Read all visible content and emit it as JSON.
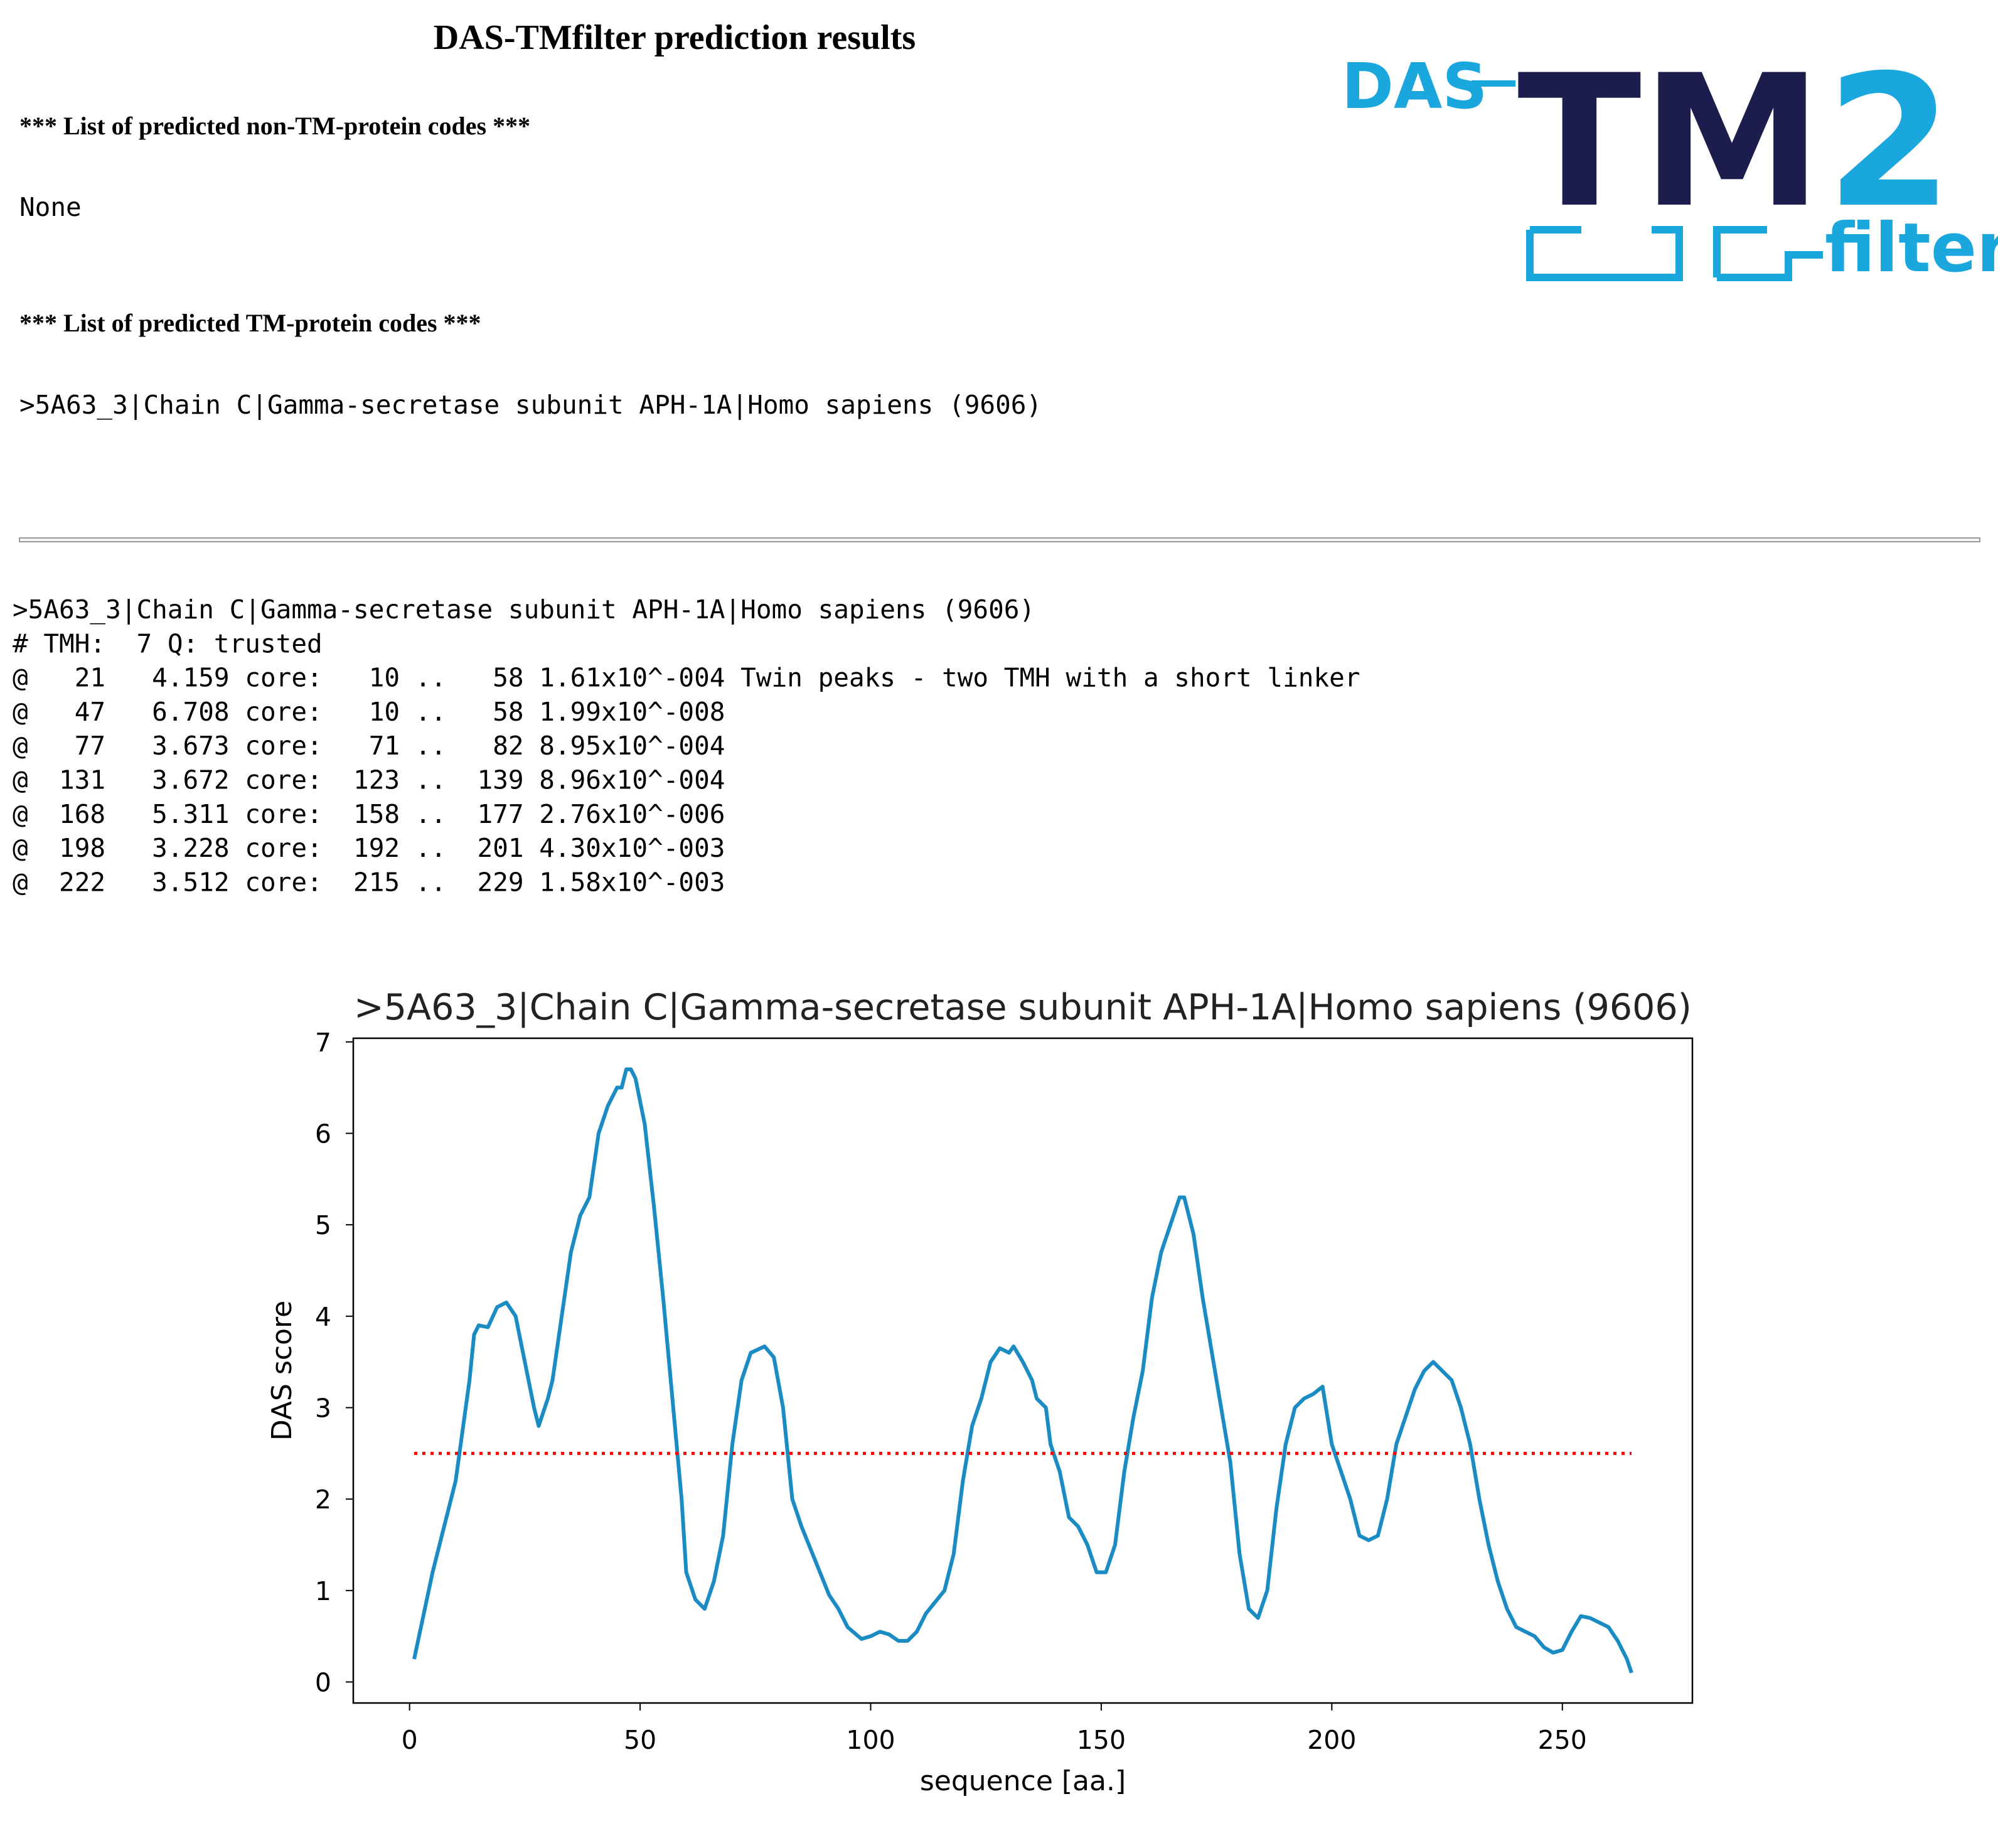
{
  "header": {
    "title": "DAS-TMfilter prediction results"
  },
  "logo": {
    "prefix": "DAS",
    "main": "TM",
    "version": "2",
    "suffix": "filter"
  },
  "non_tm": {
    "heading": "*** List of predicted non-TM-protein codes ***",
    "items": [
      "None"
    ]
  },
  "tm": {
    "heading": "*** List of predicted TM-protein codes ***",
    "items": [
      ">5A63_3|Chain C|Gamma-secretase subunit APH-1A|Homo sapiens (9606)"
    ]
  },
  "output": {
    "lines": [
      ">5A63_3|Chain C|Gamma-secretase subunit APH-1A|Homo sapiens (9606)",
      "# TMH:  7 Q: trusted",
      "@   21   4.159 core:   10 ..   58 1.61x10^-004 Twin peaks - two TMH with a short linker",
      "@   47   6.708 core:   10 ..   58 1.99x10^-008",
      "@   77   3.673 core:   71 ..   82 8.95x10^-004",
      "@  131   3.672 core:  123 ..  139 8.96x10^-004",
      "@  168   5.311 core:  158 ..  177 2.76x10^-006",
      "@  198   3.228 core:  192 ..  201 4.30x10^-003",
      "@  222   3.512 core:  215 ..  229 1.58x10^-003"
    ]
  },
  "chart_data": {
    "type": "line",
    "title": ">5A63_3|Chain C|Gamma-secretase subunit APH-1A|Homo sapiens (9606)",
    "xlabel": "sequence [aa.]",
    "ylabel": "DAS score",
    "x": [
      1,
      5,
      8,
      10,
      13,
      14,
      15,
      17,
      19,
      21,
      23,
      25,
      27,
      28,
      30,
      31,
      33,
      35,
      37,
      39,
      41,
      43,
      45,
      46,
      47,
      48,
      49,
      51,
      53,
      55,
      57,
      59,
      60,
      62,
      64,
      66,
      68,
      70,
      72,
      74,
      77,
      79,
      81,
      83,
      85,
      87,
      89,
      91,
      93,
      95,
      98,
      100,
      102,
      104,
      106,
      108,
      110,
      112,
      116,
      118,
      120,
      122,
      124,
      126,
      128,
      130,
      131,
      133,
      135,
      136,
      138,
      139,
      141,
      143,
      145,
      147,
      149,
      151,
      153,
      155,
      157,
      159,
      161,
      163,
      165,
      167,
      168,
      170,
      172,
      174,
      176,
      178,
      180,
      182,
      184,
      186,
      188,
      190,
      192,
      194,
      196,
      198,
      200,
      202,
      204,
      206,
      208,
      210,
      212,
      214,
      216,
      218,
      220,
      222,
      224,
      226,
      228,
      230,
      232,
      234,
      236,
      238,
      240,
      242,
      244,
      246,
      248,
      250,
      252,
      254,
      256,
      258,
      260,
      262,
      264,
      265
    ],
    "series": [
      {
        "color": "#1b8cc3",
        "values": [
          0.25,
          1.2,
          1.8,
          2.2,
          3.3,
          3.8,
          3.9,
          3.88,
          4.1,
          4.15,
          4.0,
          3.5,
          3.0,
          2.8,
          3.1,
          3.3,
          4.0,
          4.7,
          5.1,
          5.3,
          6.0,
          6.3,
          6.5,
          6.5,
          6.7,
          6.7,
          6.6,
          6.1,
          5.2,
          4.2,
          3.1,
          2.0,
          1.2,
          0.9,
          0.8,
          1.1,
          1.6,
          2.6,
          3.3,
          3.6,
          3.67,
          3.55,
          3.0,
          2.0,
          1.7,
          1.45,
          1.2,
          0.95,
          0.8,
          0.6,
          0.47,
          0.5,
          0.55,
          0.52,
          0.45,
          0.45,
          0.55,
          0.75,
          1.0,
          1.4,
          2.2,
          2.8,
          3.1,
          3.5,
          3.65,
          3.6,
          3.67,
          3.5,
          3.3,
          3.1,
          3.0,
          2.6,
          2.3,
          1.8,
          1.7,
          1.5,
          1.2,
          1.2,
          1.5,
          2.3,
          2.9,
          3.4,
          4.2,
          4.7,
          5.0,
          5.3,
          5.3,
          4.9,
          4.2,
          3.6,
          3.0,
          2.4,
          1.4,
          0.8,
          0.7,
          1.0,
          1.9,
          2.6,
          3.0,
          3.1,
          3.15,
          3.23,
          2.6,
          2.3,
          2.0,
          1.6,
          1.55,
          1.6,
          2.0,
          2.6,
          2.9,
          3.2,
          3.4,
          3.5,
          3.4,
          3.3,
          3.0,
          2.6,
          2.0,
          1.5,
          1.1,
          0.8,
          0.6,
          0.55,
          0.5,
          0.38,
          0.32,
          0.35,
          0.55,
          0.72,
          0.7,
          0.65,
          0.6,
          0.45,
          0.25,
          0.1
        ]
      },
      {
        "color": "#ff0000",
        "dash": "dotted",
        "x": [
          1,
          265
        ],
        "values": [
          2.5,
          2.5
        ]
      }
    ],
    "xlim": [
      -12.2,
      278.2
    ],
    "ylim": [
      -0.23,
      7.04
    ],
    "xticks": [
      0,
      50,
      100,
      150,
      200,
      250
    ],
    "yticks": [
      0,
      1,
      2,
      3,
      4,
      5,
      6,
      7
    ]
  }
}
